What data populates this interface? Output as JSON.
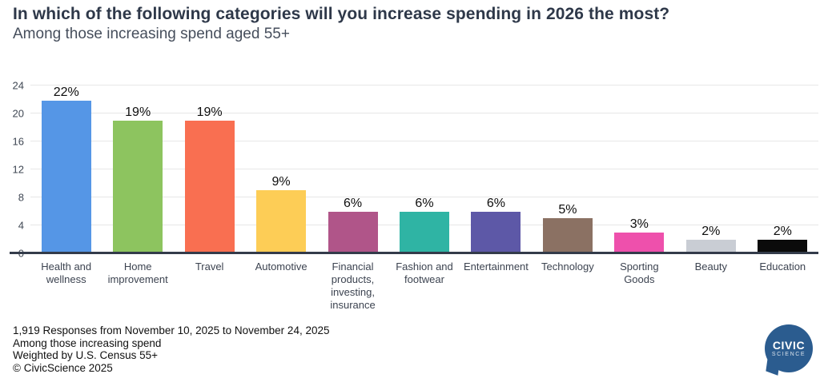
{
  "chart_data": {
    "type": "bar",
    "title": "In which of the following categories will you increase spending in 2026 the most?",
    "subtitle": "Among those increasing spend aged 55+",
    "categories": [
      "Health and wellness",
      "Home improvement",
      "Travel",
      "Automotive",
      "Financial products, investing, insurance",
      "Fashion and footwear",
      "Entertainment",
      "Technology",
      "Sporting Goods",
      "Beauty",
      "Education"
    ],
    "values": [
      22,
      19,
      19,
      9,
      6,
      6,
      6,
      5,
      3,
      2,
      2
    ],
    "value_labels": [
      "22%",
      "19%",
      "19%",
      "9%",
      "6%",
      "6%",
      "6%",
      "5%",
      "3%",
      "2%",
      "2%"
    ],
    "bar_colors": [
      "#5596e6",
      "#8dc45f",
      "#f96f51",
      "#fdcd56",
      "#b05589",
      "#2fb4a4",
      "#5d58a7",
      "#8b7163",
      "#ee50ac",
      "#c9cdd4",
      "#0b0b0b"
    ],
    "ylim": [
      0,
      24
    ],
    "yticks": [
      0,
      4,
      8,
      12,
      16,
      20,
      24
    ],
    "grid": true,
    "legend": "none",
    "xlabel": "",
    "ylabel": ""
  },
  "footer": {
    "lines": [
      "1,919 Responses from November 10, 2025 to November 24, 2025",
      "Among those increasing spend",
      "Weighted by U.S. Census 55+",
      "© CivicScience 2025"
    ]
  },
  "logo": {
    "top_text": "CIVIC",
    "bottom_text": "SCIENCE"
  },
  "colors": {
    "title_text": "#2e3849",
    "subtitle_text": "#464e5c",
    "axis_baseline": "#333b4a",
    "gridline": "#e7e7e7",
    "logo_blue": "#2b5c8f"
  }
}
